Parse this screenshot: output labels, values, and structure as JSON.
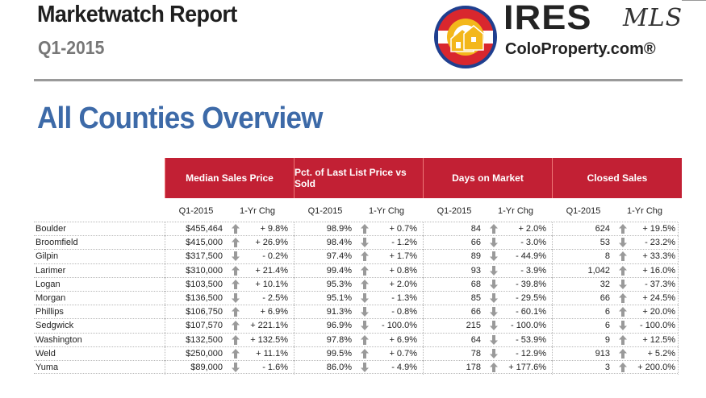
{
  "header": {
    "title": "Marketwatch Report",
    "subtitle": "Q1-2015",
    "brand_name": "IRES",
    "brand_suffix": "MLS",
    "brand_site": "ColoProperty.com®"
  },
  "section_title": "All Counties Overview",
  "colors": {
    "header_red": "#c22034",
    "title_blue": "#3d6aa8",
    "arrow_gray": "#9a9a9a"
  },
  "groups": [
    {
      "label": "Median Sales Price"
    },
    {
      "label": "Pct. of Last List Price vs Sold"
    },
    {
      "label": "Days on Market"
    },
    {
      "label": "Closed Sales"
    }
  ],
  "sub_headers": {
    "current": "Q1-2015",
    "change": "1-Yr Chg"
  },
  "rows": [
    {
      "county": "Boulder",
      "c": [
        {
          "v": "$455,464",
          "d": "up",
          "g": "+ 9.8%"
        },
        {
          "v": "98.9%",
          "d": "up",
          "g": "+ 0.7%"
        },
        {
          "v": "84",
          "d": "up",
          "g": "+ 2.0%"
        },
        {
          "v": "624",
          "d": "up",
          "g": "+ 19.5%"
        }
      ]
    },
    {
      "county": "Broomfield",
      "c": [
        {
          "v": "$415,000",
          "d": "up",
          "g": "+ 26.9%"
        },
        {
          "v": "98.4%",
          "d": "down",
          "g": "- 1.2%"
        },
        {
          "v": "66",
          "d": "down",
          "g": "- 3.0%"
        },
        {
          "v": "53",
          "d": "down",
          "g": "- 23.2%"
        }
      ]
    },
    {
      "county": "Gilpin",
      "c": [
        {
          "v": "$317,500",
          "d": "down",
          "g": "- 0.2%"
        },
        {
          "v": "97.4%",
          "d": "up",
          "g": "+ 1.7%"
        },
        {
          "v": "89",
          "d": "down",
          "g": "- 44.9%"
        },
        {
          "v": "8",
          "d": "up",
          "g": "+ 33.3%"
        }
      ]
    },
    {
      "county": "Larimer",
      "c": [
        {
          "v": "$310,000",
          "d": "up",
          "g": "+ 21.4%"
        },
        {
          "v": "99.4%",
          "d": "up",
          "g": "+ 0.8%"
        },
        {
          "v": "93",
          "d": "down",
          "g": "- 3.9%"
        },
        {
          "v": "1,042",
          "d": "up",
          "g": "+ 16.0%"
        }
      ]
    },
    {
      "county": "Logan",
      "c": [
        {
          "v": "$103,500",
          "d": "up",
          "g": "+ 10.1%"
        },
        {
          "v": "95.3%",
          "d": "up",
          "g": "+ 2.0%"
        },
        {
          "v": "68",
          "d": "down",
          "g": "- 39.8%"
        },
        {
          "v": "32",
          "d": "down",
          "g": "- 37.3%"
        }
      ]
    },
    {
      "county": "Morgan",
      "c": [
        {
          "v": "$136,500",
          "d": "down",
          "g": "- 2.5%"
        },
        {
          "v": "95.1%",
          "d": "down",
          "g": "- 1.3%"
        },
        {
          "v": "85",
          "d": "down",
          "g": "- 29.5%"
        },
        {
          "v": "66",
          "d": "up",
          "g": "+ 24.5%"
        }
      ]
    },
    {
      "county": "Phillips",
      "c": [
        {
          "v": "$106,750",
          "d": "up",
          "g": "+ 6.9%"
        },
        {
          "v": "91.3%",
          "d": "down",
          "g": "- 0.8%"
        },
        {
          "v": "66",
          "d": "down",
          "g": "- 60.1%"
        },
        {
          "v": "6",
          "d": "up",
          "g": "+ 20.0%"
        }
      ]
    },
    {
      "county": "Sedgwick",
      "c": [
        {
          "v": "$107,570",
          "d": "up",
          "g": "+ 221.1%"
        },
        {
          "v": "96.9%",
          "d": "down",
          "g": "- 100.0%"
        },
        {
          "v": "215",
          "d": "down",
          "g": "- 100.0%"
        },
        {
          "v": "6",
          "d": "down",
          "g": "- 100.0%"
        }
      ]
    },
    {
      "county": "Washington",
      "c": [
        {
          "v": "$132,500",
          "d": "up",
          "g": "+ 132.5%"
        },
        {
          "v": "97.8%",
          "d": "up",
          "g": "+ 6.9%"
        },
        {
          "v": "64",
          "d": "down",
          "g": "- 53.9%"
        },
        {
          "v": "9",
          "d": "up",
          "g": "+ 12.5%"
        }
      ]
    },
    {
      "county": "Weld",
      "c": [
        {
          "v": "$250,000",
          "d": "up",
          "g": "+ 11.1%"
        },
        {
          "v": "99.5%",
          "d": "up",
          "g": "+ 0.7%"
        },
        {
          "v": "78",
          "d": "down",
          "g": "- 12.9%"
        },
        {
          "v": "913",
          "d": "up",
          "g": "+ 5.2%"
        }
      ]
    },
    {
      "county": "Yuma",
      "c": [
        {
          "v": "$89,000",
          "d": "down",
          "g": "- 1.6%"
        },
        {
          "v": "86.0%",
          "d": "down",
          "g": "- 4.9%"
        },
        {
          "v": "178",
          "d": "up",
          "g": "+ 177.6%"
        },
        {
          "v": "3",
          "d": "up",
          "g": "+ 200.0%"
        }
      ]
    }
  ]
}
